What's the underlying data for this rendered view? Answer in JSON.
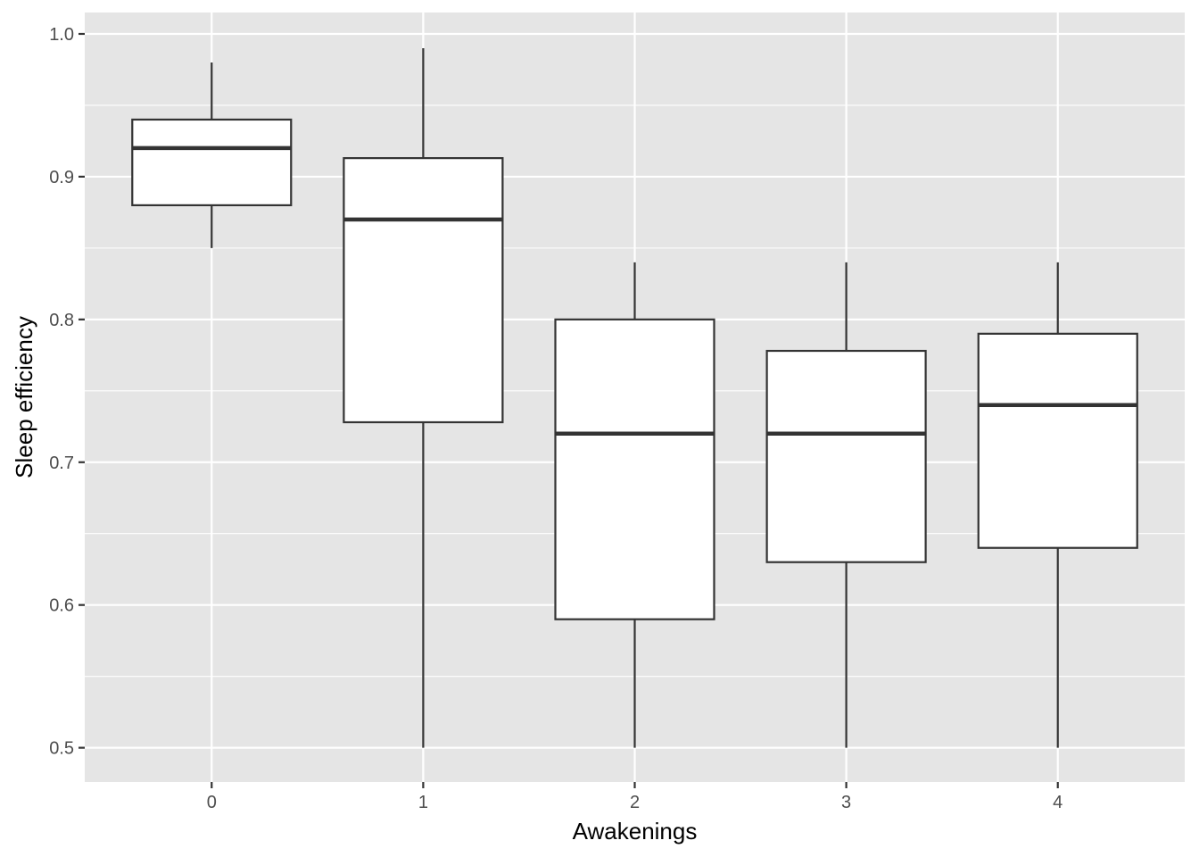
{
  "chart_data": {
    "type": "box",
    "xlabel": "Awakenings",
    "ylabel": "Sleep efficiency",
    "categories": [
      "0",
      "1",
      "2",
      "3",
      "4"
    ],
    "boxes": [
      {
        "category": "0",
        "min": 0.85,
        "q1": 0.88,
        "median": 0.92,
        "q3": 0.94,
        "max": 0.98
      },
      {
        "category": "1",
        "min": 0.5,
        "q1": 0.728,
        "median": 0.87,
        "q3": 0.913,
        "max": 0.99
      },
      {
        "category": "2",
        "min": 0.5,
        "q1": 0.59,
        "median": 0.72,
        "q3": 0.8,
        "max": 0.84
      },
      {
        "category": "3",
        "min": 0.5,
        "q1": 0.63,
        "median": 0.72,
        "q3": 0.778,
        "max": 0.84
      },
      {
        "category": "4",
        "min": 0.5,
        "q1": 0.64,
        "median": 0.74,
        "q3": 0.79,
        "max": 0.84
      }
    ],
    "yticks": [
      "0.5",
      "0.6",
      "0.7",
      "0.8",
      "0.9",
      "1.0"
    ],
    "ylim": [
      0.476,
      1.015
    ],
    "grid": true,
    "legend": "none",
    "colors": {
      "panel": "#e5e5e5",
      "grid": "#ffffff",
      "box_fill": "#ffffff",
      "box_stroke": "#333333",
      "tick_text": "#4d4d4d",
      "tick_mark": "#333333"
    }
  }
}
